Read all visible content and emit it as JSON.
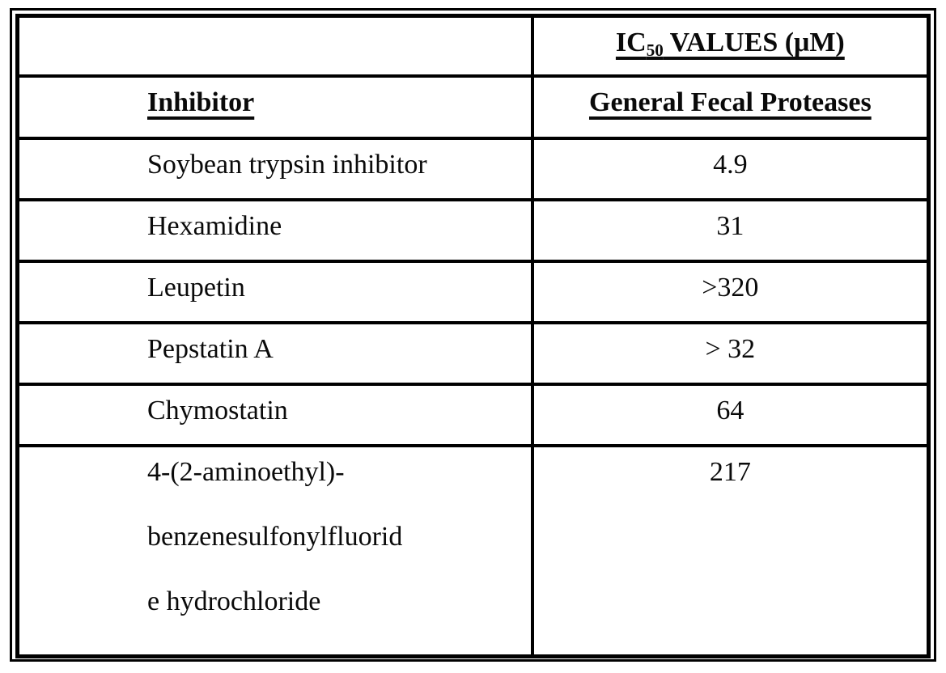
{
  "document": {
    "table": {
      "header": {
        "ic_prefix": "IC",
        "ic_sub": "50",
        "ic_suffix": " VALUES (μM)",
        "inhibitor_label": "Inhibitor",
        "column2_label": "General Fecal Proteases"
      },
      "rows": [
        {
          "inhibitor_lines": [
            "Soybean trypsin inhibitor"
          ],
          "value": "4.9"
        },
        {
          "inhibitor_lines": [
            "Hexamidine"
          ],
          "value": "31"
        },
        {
          "inhibitor_lines": [
            "Leupetin"
          ],
          "value": ">320"
        },
        {
          "inhibitor_lines": [
            "Pepstatin A"
          ],
          "value": "> 32"
        },
        {
          "inhibitor_lines": [
            "Chymostatin"
          ],
          "value": "64"
        },
        {
          "inhibitor_lines": [
            "4-(2-aminoethyl)-",
            "benzenesulfonylfluorid",
            "e hydrochloride"
          ],
          "value": "217"
        }
      ]
    }
  }
}
